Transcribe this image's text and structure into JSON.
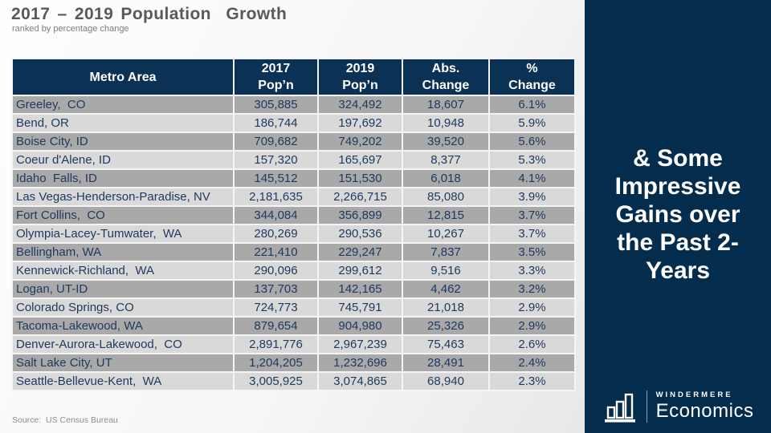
{
  "slide": {
    "title": "2017 – 2019 Population  Growth",
    "subtitle": "ranked by percentage change",
    "source": "Source:  US Census Bureau"
  },
  "table": {
    "headers": [
      "Metro Area",
      "2017\nPop’n",
      "2019\nPop’n",
      "Abs.\nChange",
      "%\nChange"
    ],
    "rows": [
      {
        "metro": "Greeley,  CO",
        "pop_2017": "305,885",
        "pop_2019": "324,492",
        "abs_change": "18,607",
        "pct_change": "6.1%"
      },
      {
        "metro": "Bend, OR",
        "pop_2017": "186,744",
        "pop_2019": "197,692",
        "abs_change": "10,948",
        "pct_change": "5.9%"
      },
      {
        "metro": "Boise City, ID",
        "pop_2017": "709,682",
        "pop_2019": "749,202",
        "abs_change": "39,520",
        "pct_change": "5.6%"
      },
      {
        "metro": "Coeur d'Alene, ID",
        "pop_2017": "157,320",
        "pop_2019": "165,697",
        "abs_change": "8,377",
        "pct_change": "5.3%"
      },
      {
        "metro": "Idaho  Falls, ID",
        "pop_2017": "145,512",
        "pop_2019": "151,530",
        "abs_change": "6,018",
        "pct_change": "4.1%"
      },
      {
        "metro": "Las Vegas-Henderson-Paradise, NV",
        "pop_2017": "2,181,635",
        "pop_2019": "2,266,715",
        "abs_change": "85,080",
        "pct_change": "3.9%"
      },
      {
        "metro": "Fort Collins,  CO",
        "pop_2017": "344,084",
        "pop_2019": "356,899",
        "abs_change": "12,815",
        "pct_change": "3.7%"
      },
      {
        "metro": "Olympia-Lacey-Tumwater,  WA",
        "pop_2017": "280,269",
        "pop_2019": "290,536",
        "abs_change": "10,267",
        "pct_change": "3.7%"
      },
      {
        "metro": "Bellingham, WA",
        "pop_2017": "221,410",
        "pop_2019": "229,247",
        "abs_change": "7,837",
        "pct_change": "3.5%"
      },
      {
        "metro": "Kennewick-Richland,  WA",
        "pop_2017": "290,096",
        "pop_2019": "299,612",
        "abs_change": "9,516",
        "pct_change": "3.3%"
      },
      {
        "metro": "Logan, UT-ID",
        "pop_2017": "137,703",
        "pop_2019": "142,165",
        "abs_change": "4,462",
        "pct_change": "3.2%"
      },
      {
        "metro": "Colorado Springs, CO",
        "pop_2017": "724,773",
        "pop_2019": "745,791",
        "abs_change": "21,018",
        "pct_change": "2.9%"
      },
      {
        "metro": "Tacoma-Lakewood, WA",
        "pop_2017": "879,654",
        "pop_2019": "904,980",
        "abs_change": "25,326",
        "pct_change": "2.9%"
      },
      {
        "metro": "Denver-Aurora-Lakewood,  CO",
        "pop_2017": "2,891,776",
        "pop_2019": "2,967,239",
        "abs_change": "75,463",
        "pct_change": "2.6%"
      },
      {
        "metro": "Salt Lake City, UT",
        "pop_2017": "1,204,205",
        "pop_2019": "1,232,696",
        "abs_change": "28,491",
        "pct_change": "2.4%"
      },
      {
        "metro": "Seattle-Bellevue-Kent,  WA",
        "pop_2017": "3,005,925",
        "pop_2019": "3,074,865",
        "abs_change": "68,940",
        "pct_change": "2.3%"
      }
    ]
  },
  "panel": {
    "headline": "& Some\nImpressive\nGains over\nthe Past 2-\nYears",
    "brand_top": "WINDERMERE",
    "brand_bottom": "Economics",
    "logo_icon": "bar-chart-icon"
  },
  "colors": {
    "header_navy": "#0b3154",
    "panel_navy": "#042c4d",
    "row_gray": "#a9a9a9",
    "row_light": "#d9d9d9",
    "cell_text": "#1f3a60",
    "title_gray": "#595959",
    "white": "#ffffff"
  },
  "chart_data": {
    "type": "table",
    "title": "2017 – 2019 Population Growth",
    "subtitle": "ranked by percentage change",
    "source": "Source: US Census Bureau",
    "columns": [
      "Metro Area",
      "2017 Pop'n",
      "2019 Pop'n",
      "Abs. Change",
      "% Change"
    ],
    "rows": [
      [
        "Greeley, CO",
        305885,
        324492,
        18607,
        6.1
      ],
      [
        "Bend, OR",
        186744,
        197692,
        10948,
        5.9
      ],
      [
        "Boise City, ID",
        709682,
        749202,
        39520,
        5.6
      ],
      [
        "Coeur d'Alene, ID",
        157320,
        165697,
        8377,
        5.3
      ],
      [
        "Idaho Falls, ID",
        145512,
        151530,
        6018,
        4.1
      ],
      [
        "Las Vegas-Henderson-Paradise, NV",
        2181635,
        2266715,
        85080,
        3.9
      ],
      [
        "Fort Collins, CO",
        344084,
        356899,
        12815,
        3.7
      ],
      [
        "Olympia-Lacey-Tumwater, WA",
        280269,
        290536,
        10267,
        3.7
      ],
      [
        "Bellingham, WA",
        221410,
        229247,
        7837,
        3.5
      ],
      [
        "Kennewick-Richland, WA",
        290096,
        299612,
        9516,
        3.3
      ],
      [
        "Logan, UT-ID",
        137703,
        142165,
        4462,
        3.2
      ],
      [
        "Colorado Springs, CO",
        724773,
        745791,
        21018,
        2.9
      ],
      [
        "Tacoma-Lakewood, WA",
        879654,
        904980,
        25326,
        2.9
      ],
      [
        "Denver-Aurora-Lakewood, CO",
        2891776,
        2967239,
        75463,
        2.6
      ],
      [
        "Salt Lake City, UT",
        1204205,
        1232696,
        28491,
        2.4
      ],
      [
        "Seattle-Bellevue-Kent, WA",
        3005925,
        3074865,
        68940,
        2.3
      ]
    ]
  }
}
